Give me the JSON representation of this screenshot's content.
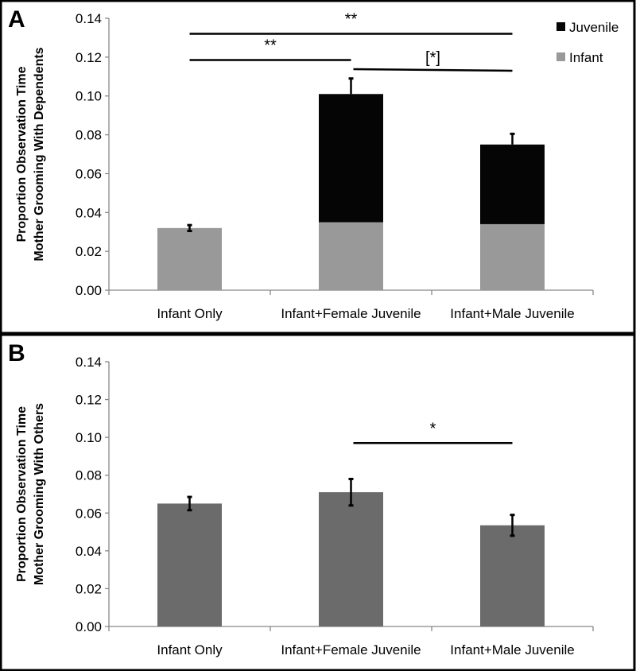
{
  "chart_data": [
    {
      "type": "bar",
      "stacked": true,
      "panel_label": "A",
      "title": "",
      "xlabel": "",
      "ylabel_lines": [
        "Proportion Observation Time",
        "Mother Grooming With Dependents"
      ],
      "ylim": [
        0,
        0.14
      ],
      "yticks": [
        "0.00",
        "0.02",
        "0.04",
        "0.06",
        "0.08",
        "0.10",
        "0.12",
        "0.14"
      ],
      "categories": [
        "Infant Only",
        "Infant+Female Juvenile",
        "Infant+Male Juvenile"
      ],
      "series": [
        {
          "name": "Infant",
          "color": "#999999",
          "values": [
            0.032,
            0.035,
            0.034
          ]
        },
        {
          "name": "Juvenile",
          "color": "#050505",
          "values": [
            0,
            0.066,
            0.041
          ]
        }
      ],
      "totals": [
        0.032,
        0.101,
        0.075
      ],
      "error": [
        0.0015,
        0.008,
        0.0055
      ],
      "legend": {
        "placement": "top-right",
        "entries": [
          "Juvenile",
          "Infant"
        ]
      },
      "significance": [
        {
          "from": 0,
          "to": 2,
          "y": 0.132,
          "label": "**"
        },
        {
          "from": 0,
          "to": 1,
          "y": 0.1185,
          "label": "**"
        },
        {
          "from": 1,
          "to": 2,
          "y": 0.113,
          "label": "[*]"
        }
      ]
    },
    {
      "type": "bar",
      "panel_label": "B",
      "title": "",
      "xlabel": "",
      "ylabel_lines": [
        "Proportion Observation Time",
        "Mother Grooming With Others"
      ],
      "ylim": [
        0,
        0.14
      ],
      "yticks": [
        "0.00",
        "0.02",
        "0.04",
        "0.06",
        "0.08",
        "0.10",
        "0.12",
        "0.14"
      ],
      "categories": [
        "Infant Only",
        "Infant+Female Juvenile",
        "Infant+Male Juvenile"
      ],
      "series": [
        {
          "name": "Others",
          "color": "#6b6b6b",
          "values": [
            0.065,
            0.071,
            0.0535
          ]
        }
      ],
      "error": [
        0.0035,
        0.007,
        0.0055
      ],
      "significance": [
        {
          "from": 1,
          "to": 2,
          "y": 0.097,
          "label": "*"
        }
      ]
    }
  ]
}
